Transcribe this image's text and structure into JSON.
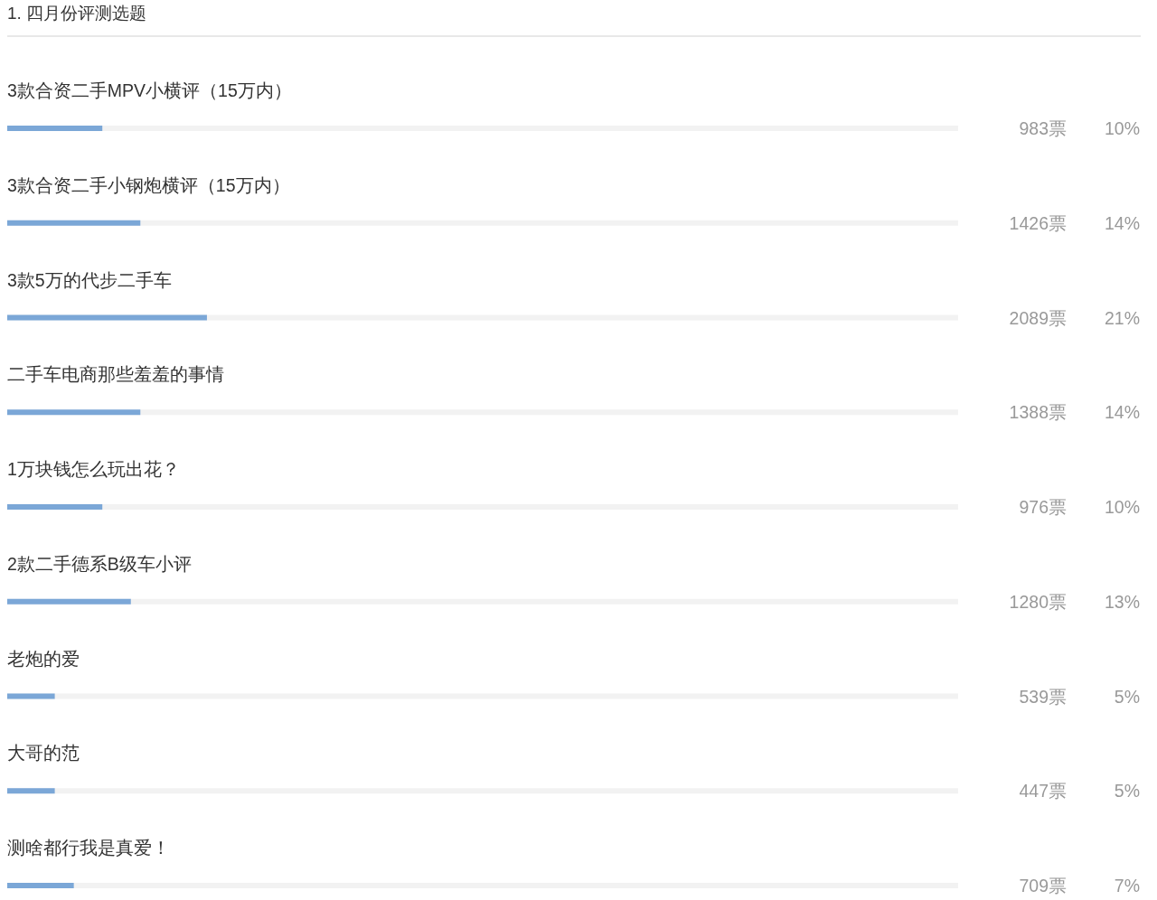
{
  "chart_data": {
    "type": "bar",
    "orientation": "horizontal",
    "title": "1. 四月份评测选题",
    "categories": [
      "3款合资二手MPV小横评（15万内）",
      "3款合资二手小钢炮横评（15万内）",
      "3款5万的代步二手车",
      "二手车电商那些羞羞的事情",
      "1万块钱怎么玩出花？",
      "2款二手德系B级车小评",
      "老炮的爱",
      "大哥的范",
      "测啥都行我是真爱！"
    ],
    "values": [
      10,
      14,
      21,
      14,
      10,
      13,
      5,
      5,
      7
    ],
    "value_labels": [
      "10%",
      "14%",
      "21%",
      "14%",
      "10%",
      "13%",
      "5%",
      "5%",
      "7%"
    ],
    "color": "#7ba7d7",
    "xlim": [
      0,
      100
    ],
    "annotations": [
      "983票",
      "1426票",
      "2089票",
      "1388票",
      "976票",
      "1280票",
      "539票",
      "447票",
      "709票"
    ]
  }
}
